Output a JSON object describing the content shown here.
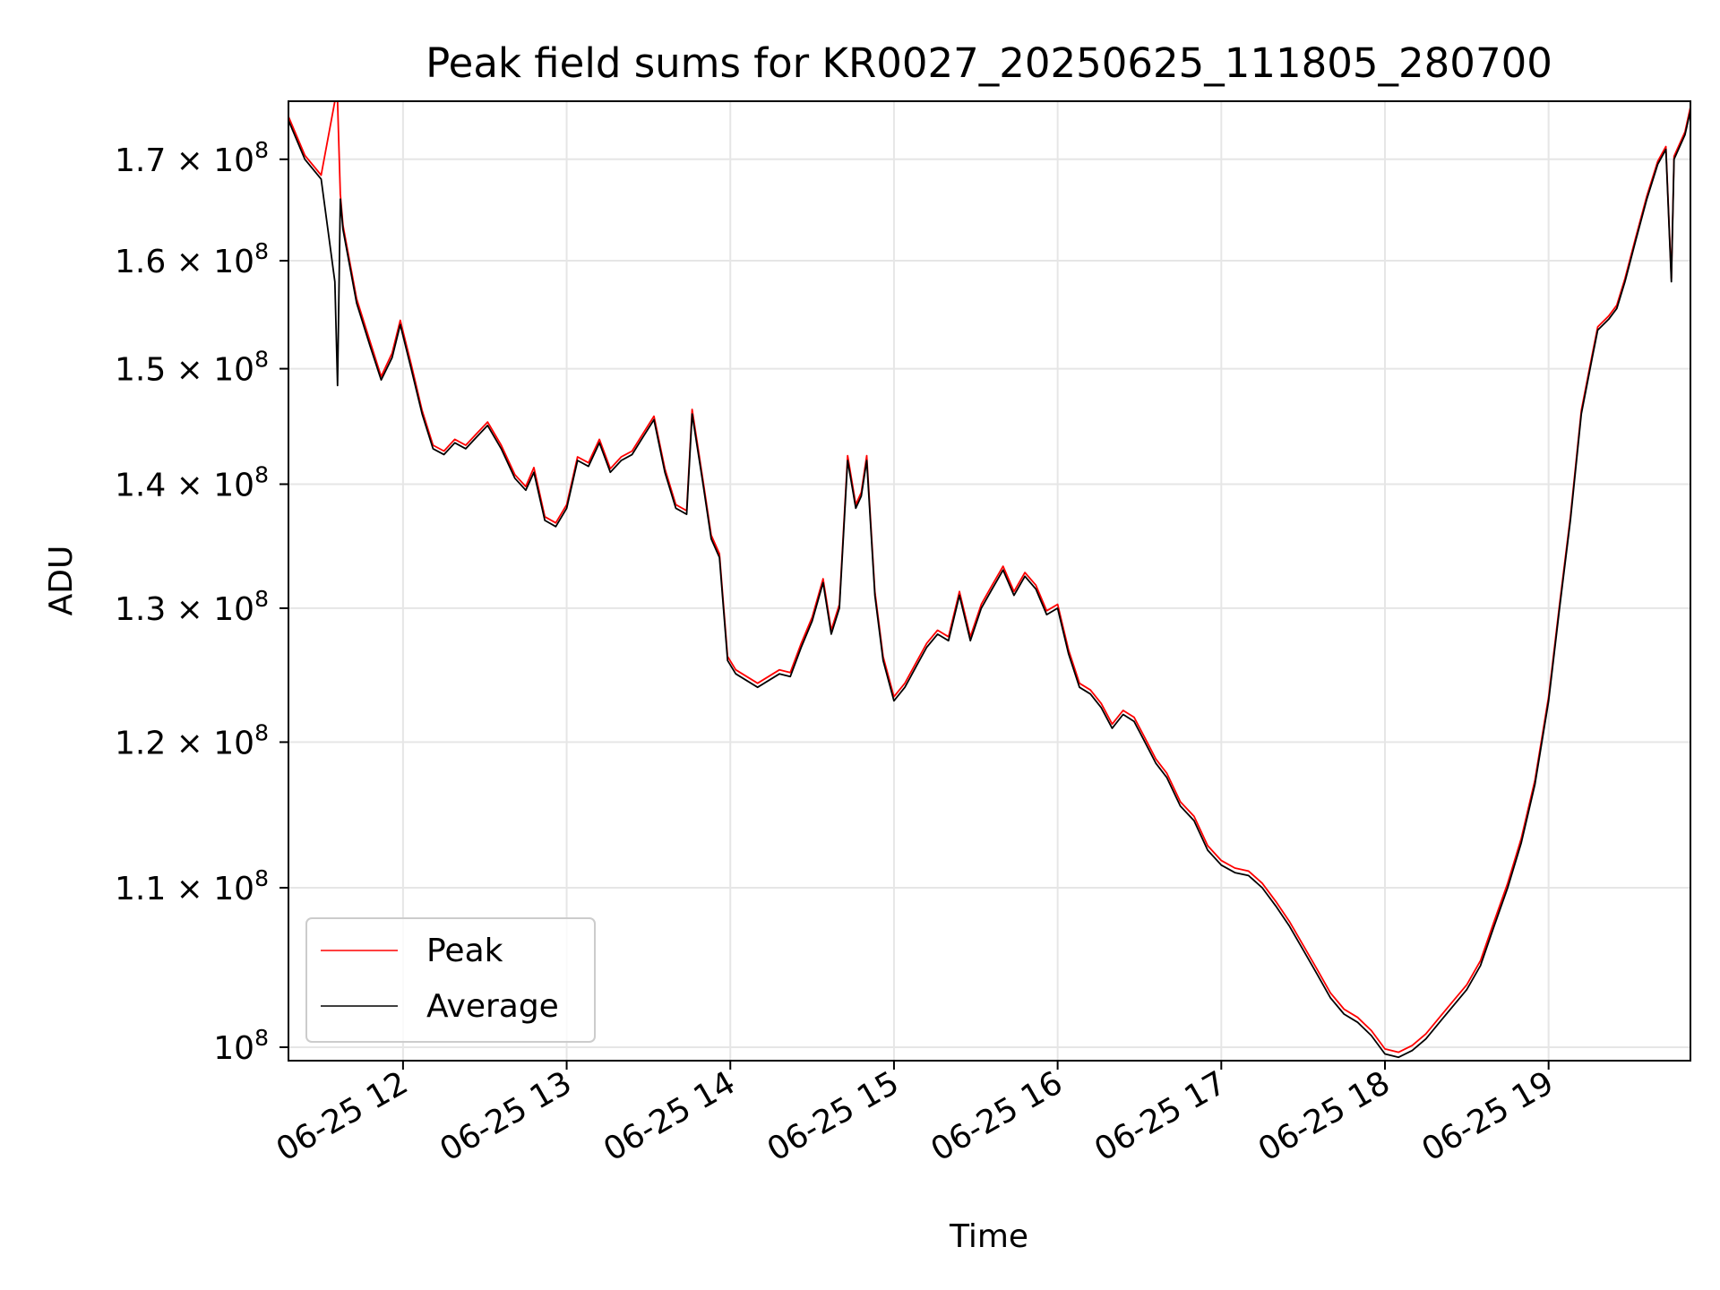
{
  "chart_data": {
    "type": "line",
    "title": "Peak field sums for KR0027_20250625_111805_280700",
    "xlabel": "Time",
    "ylabel": "ADU",
    "y_scale": "log",
    "xlim": [
      "2025-06-25 11:18",
      "2025-06-25 19:52"
    ],
    "ylim": [
      99200000,
      176000000
    ],
    "x_ticks": [
      {
        "t": "2025-06-25 12:00",
        "label": "06-25 12"
      },
      {
        "t": "2025-06-25 13:00",
        "label": "06-25 13"
      },
      {
        "t": "2025-06-25 14:00",
        "label": "06-25 14"
      },
      {
        "t": "2025-06-25 15:00",
        "label": "06-25 15"
      },
      {
        "t": "2025-06-25 16:00",
        "label": "06-25 16"
      },
      {
        "t": "2025-06-25 17:00",
        "label": "06-25 17"
      },
      {
        "t": "2025-06-25 18:00",
        "label": "06-25 18"
      },
      {
        "t": "2025-06-25 19:00",
        "label": "06-25 19"
      }
    ],
    "y_ticks": [
      {
        "v": 100000000,
        "mant": "",
        "exp": "8"
      },
      {
        "v": 110000000,
        "mant": "1.1",
        "exp": "8"
      },
      {
        "v": 120000000,
        "mant": "1.2",
        "exp": "8"
      },
      {
        "v": 130000000,
        "mant": "1.3",
        "exp": "8"
      },
      {
        "v": 140000000,
        "mant": "1.4",
        "exp": "8"
      },
      {
        "v": 150000000,
        "mant": "1.5",
        "exp": "8"
      },
      {
        "v": 160000000,
        "mant": "1.6",
        "exp": "8"
      },
      {
        "v": 170000000,
        "mant": "1.7",
        "exp": "8"
      }
    ],
    "grid": true,
    "legend_position": "lower-left",
    "series": [
      {
        "name": "Average",
        "color": "#000000",
        "x": [
          "2025-06-25 11:18",
          "2025-06-25 11:24",
          "2025-06-25 11:30",
          "2025-06-25 11:35",
          "2025-06-25 11:36",
          "2025-06-25 11:37",
          "2025-06-25 11:38",
          "2025-06-25 11:43",
          "2025-06-25 11:48",
          "2025-06-25 11:52",
          "2025-06-25 11:56",
          "2025-06-25 11:59",
          "2025-06-25 12:03",
          "2025-06-25 12:07",
          "2025-06-25 12:11",
          "2025-06-25 12:15",
          "2025-06-25 12:19",
          "2025-06-25 12:23",
          "2025-06-25 12:27",
          "2025-06-25 12:31",
          "2025-06-25 12:36",
          "2025-06-25 12:41",
          "2025-06-25 12:45",
          "2025-06-25 12:48",
          "2025-06-25 12:52",
          "2025-06-25 12:56",
          "2025-06-25 13:00",
          "2025-06-25 13:04",
          "2025-06-25 13:08",
          "2025-06-25 13:12",
          "2025-06-25 13:16",
          "2025-06-25 13:20",
          "2025-06-25 13:24",
          "2025-06-25 13:28",
          "2025-06-25 13:32",
          "2025-06-25 13:36",
          "2025-06-25 13:40",
          "2025-06-25 13:44",
          "2025-06-25 13:46",
          "2025-06-25 13:50",
          "2025-06-25 13:53",
          "2025-06-25 13:56",
          "2025-06-25 13:59",
          "2025-06-25 14:02",
          "2025-06-25 14:06",
          "2025-06-25 14:10",
          "2025-06-25 14:14",
          "2025-06-25 14:18",
          "2025-06-25 14:22",
          "2025-06-25 14:26",
          "2025-06-25 14:30",
          "2025-06-25 14:34",
          "2025-06-25 14:37",
          "2025-06-25 14:40",
          "2025-06-25 14:43",
          "2025-06-25 14:46",
          "2025-06-25 14:48",
          "2025-06-25 14:50",
          "2025-06-25 14:53",
          "2025-06-25 14:56",
          "2025-06-25 15:00",
          "2025-06-25 15:04",
          "2025-06-25 15:08",
          "2025-06-25 15:12",
          "2025-06-25 15:16",
          "2025-06-25 15:20",
          "2025-06-25 15:24",
          "2025-06-25 15:28",
          "2025-06-25 15:32",
          "2025-06-25 15:36",
          "2025-06-25 15:40",
          "2025-06-25 15:44",
          "2025-06-25 15:48",
          "2025-06-25 15:52",
          "2025-06-25 15:56",
          "2025-06-25 16:00",
          "2025-06-25 16:04",
          "2025-06-25 16:08",
          "2025-06-25 16:12",
          "2025-06-25 16:16",
          "2025-06-25 16:20",
          "2025-06-25 16:24",
          "2025-06-25 16:28",
          "2025-06-25 16:32",
          "2025-06-25 16:36",
          "2025-06-25 16:40",
          "2025-06-25 16:45",
          "2025-06-25 16:50",
          "2025-06-25 16:55",
          "2025-06-25 17:00",
          "2025-06-25 17:05",
          "2025-06-25 17:10",
          "2025-06-25 17:15",
          "2025-06-25 17:20",
          "2025-06-25 17:25",
          "2025-06-25 17:30",
          "2025-06-25 17:35",
          "2025-06-25 17:40",
          "2025-06-25 17:45",
          "2025-06-25 17:50",
          "2025-06-25 17:55",
          "2025-06-25 18:00",
          "2025-06-25 18:05",
          "2025-06-25 18:10",
          "2025-06-25 18:15",
          "2025-06-25 18:20",
          "2025-06-25 18:25",
          "2025-06-25 18:30",
          "2025-06-25 18:35",
          "2025-06-25 18:40",
          "2025-06-25 18:45",
          "2025-06-25 18:50",
          "2025-06-25 18:55",
          "2025-06-25 19:00",
          "2025-06-25 19:04",
          "2025-06-25 19:08",
          "2025-06-25 19:12",
          "2025-06-25 19:16",
          "2025-06-25 19:18",
          "2025-06-25 19:22",
          "2025-06-25 19:25",
          "2025-06-25 19:28",
          "2025-06-25 19:32",
          "2025-06-25 19:36",
          "2025-06-25 19:40",
          "2025-06-25 19:43",
          "2025-06-25 19:45",
          "2025-06-25 19:46",
          "2025-06-25 19:50",
          "2025-06-25 19:52"
        ],
        "y": [
          174000000,
          170000000,
          168000000,
          158000000,
          148500000,
          166000000,
          163000000,
          156000000,
          152000000,
          149000000,
          151000000,
          154000000,
          150000000,
          146000000,
          143000000,
          142500000,
          143500000,
          143000000,
          144000000,
          145000000,
          143000000,
          140500000,
          139500000,
          141000000,
          137000000,
          136500000,
          138000000,
          142000000,
          141500000,
          143500000,
          141000000,
          142000000,
          142500000,
          144000000,
          145500000,
          141000000,
          138000000,
          137500000,
          146000000,
          140000000,
          135500000,
          134000000,
          126000000,
          125000000,
          124500000,
          124000000,
          124500000,
          125000000,
          124800000,
          127000000,
          129000000,
          132000000,
          128000000,
          130000000,
          142000000,
          138000000,
          139000000,
          142000000,
          131000000,
          126000000,
          123000000,
          124000000,
          125500000,
          127000000,
          128000000,
          127500000,
          131000000,
          127500000,
          130000000,
          131500000,
          133000000,
          131000000,
          132500000,
          131500000,
          129500000,
          130000000,
          126500000,
          124000000,
          123500000,
          122500000,
          121000000,
          122000000,
          121500000,
          120000000,
          118500000,
          117500000,
          115500000,
          114500000,
          112500000,
          111500000,
          111000000,
          110800000,
          110000000,
          108800000,
          107500000,
          106000000,
          104500000,
          103000000,
          102000000,
          101500000,
          100700000,
          99600000,
          99400000,
          99800000,
          100500000,
          101500000,
          102500000,
          103500000,
          105000000,
          107500000,
          110000000,
          113000000,
          117000000,
          123000000,
          130000000,
          137000000,
          146000000,
          151000000,
          153500000,
          154500000,
          155500000,
          158000000,
          162000000,
          166000000,
          169500000,
          171000000,
          158000000,
          170000000,
          172500000,
          175000000
        ]
      },
      {
        "name": "Peak",
        "color": "#ff0000",
        "x": [
          "2025-06-25 11:18",
          "2025-06-25 11:24",
          "2025-06-25 11:30",
          "2025-06-25 11:35",
          "2025-06-25 11:36",
          "2025-06-25 11:37",
          "2025-06-25 11:38",
          "2025-06-25 11:43",
          "2025-06-25 11:48",
          "2025-06-25 11:52",
          "2025-06-25 11:56",
          "2025-06-25 11:59",
          "2025-06-25 12:03",
          "2025-06-25 12:07",
          "2025-06-25 12:11",
          "2025-06-25 12:15",
          "2025-06-25 12:19",
          "2025-06-25 12:23",
          "2025-06-25 12:27",
          "2025-06-25 12:31",
          "2025-06-25 12:36",
          "2025-06-25 12:41",
          "2025-06-25 12:45",
          "2025-06-25 12:48",
          "2025-06-25 12:52",
          "2025-06-25 12:56",
          "2025-06-25 13:00",
          "2025-06-25 13:04",
          "2025-06-25 13:08",
          "2025-06-25 13:12",
          "2025-06-25 13:16",
          "2025-06-25 13:20",
          "2025-06-25 13:24",
          "2025-06-25 13:28",
          "2025-06-25 13:32",
          "2025-06-25 13:36",
          "2025-06-25 13:40",
          "2025-06-25 13:44",
          "2025-06-25 13:46",
          "2025-06-25 13:50",
          "2025-06-25 13:53",
          "2025-06-25 13:56",
          "2025-06-25 13:59",
          "2025-06-25 14:02",
          "2025-06-25 14:06",
          "2025-06-25 14:10",
          "2025-06-25 14:14",
          "2025-06-25 14:18",
          "2025-06-25 14:22",
          "2025-06-25 14:26",
          "2025-06-25 14:30",
          "2025-06-25 14:34",
          "2025-06-25 14:37",
          "2025-06-25 14:40",
          "2025-06-25 14:43",
          "2025-06-25 14:46",
          "2025-06-25 14:48",
          "2025-06-25 14:50",
          "2025-06-25 14:53",
          "2025-06-25 14:56",
          "2025-06-25 15:00",
          "2025-06-25 15:04",
          "2025-06-25 15:08",
          "2025-06-25 15:12",
          "2025-06-25 15:16",
          "2025-06-25 15:20",
          "2025-06-25 15:24",
          "2025-06-25 15:28",
          "2025-06-25 15:32",
          "2025-06-25 15:36",
          "2025-06-25 15:40",
          "2025-06-25 15:44",
          "2025-06-25 15:48",
          "2025-06-25 15:52",
          "2025-06-25 15:56",
          "2025-06-25 16:00",
          "2025-06-25 16:04",
          "2025-06-25 16:08",
          "2025-06-25 16:12",
          "2025-06-25 16:16",
          "2025-06-25 16:20",
          "2025-06-25 16:24",
          "2025-06-25 16:28",
          "2025-06-25 16:32",
          "2025-06-25 16:36",
          "2025-06-25 16:40",
          "2025-06-25 16:45",
          "2025-06-25 16:50",
          "2025-06-25 16:55",
          "2025-06-25 17:00",
          "2025-06-25 17:05",
          "2025-06-25 17:10",
          "2025-06-25 17:15",
          "2025-06-25 17:20",
          "2025-06-25 17:25",
          "2025-06-25 17:30",
          "2025-06-25 17:35",
          "2025-06-25 17:40",
          "2025-06-25 17:45",
          "2025-06-25 17:50",
          "2025-06-25 17:55",
          "2025-06-25 18:00",
          "2025-06-25 18:05",
          "2025-06-25 18:10",
          "2025-06-25 18:15",
          "2025-06-25 18:20",
          "2025-06-25 18:25",
          "2025-06-25 18:30",
          "2025-06-25 18:35",
          "2025-06-25 18:40",
          "2025-06-25 18:45",
          "2025-06-25 18:50",
          "2025-06-25 18:55",
          "2025-06-25 19:00",
          "2025-06-25 19:04",
          "2025-06-25 19:08",
          "2025-06-25 19:12",
          "2025-06-25 19:16",
          "2025-06-25 19:18",
          "2025-06-25 19:22",
          "2025-06-25 19:25",
          "2025-06-25 19:28",
          "2025-06-25 19:32",
          "2025-06-25 19:36",
          "2025-06-25 19:40",
          "2025-06-25 19:43",
          "2025-06-25 19:45",
          "2025-06-25 19:46",
          "2025-06-25 19:50",
          "2025-06-25 19:52"
        ],
        "y": [
          174400000,
          170400000,
          168400000,
          176000000,
          176000000,
          166500000,
          163400000,
          156400000,
          152400000,
          149300000,
          151400000,
          154400000,
          150400000,
          146300000,
          143300000,
          142800000,
          143800000,
          143300000,
          144300000,
          145300000,
          143300000,
          140800000,
          139800000,
          141400000,
          137300000,
          136800000,
          138300000,
          142300000,
          141800000,
          143800000,
          141300000,
          142300000,
          142800000,
          144300000,
          145800000,
          141300000,
          138300000,
          137800000,
          146400000,
          140300000,
          135800000,
          134300000,
          126300000,
          125300000,
          124800000,
          124300000,
          124800000,
          125300000,
          125100000,
          127300000,
          129300000,
          132300000,
          128300000,
          130300000,
          142400000,
          138300000,
          139300000,
          142400000,
          131300000,
          126300000,
          123300000,
          124300000,
          125800000,
          127300000,
          128300000,
          127800000,
          131300000,
          127800000,
          130300000,
          131800000,
          133300000,
          131300000,
          132800000,
          131800000,
          129800000,
          130300000,
          126800000,
          124300000,
          123800000,
          122800000,
          121300000,
          122300000,
          121800000,
          120300000,
          118800000,
          117800000,
          115800000,
          114800000,
          112800000,
          111800000,
          111300000,
          111100000,
          110300000,
          109100000,
          107800000,
          106300000,
          104800000,
          103300000,
          102300000,
          101800000,
          101000000,
          99900000,
          99700000,
          100100000,
          100800000,
          101800000,
          102800000,
          103800000,
          105300000,
          107800000,
          110300000,
          113300000,
          117300000,
          123300000,
          130300000,
          137300000,
          146300000,
          151300000,
          153800000,
          154800000,
          155800000,
          158300000,
          162300000,
          166300000,
          169800000,
          171300000,
          158300000,
          170300000,
          172800000,
          175400000
        ]
      }
    ]
  }
}
